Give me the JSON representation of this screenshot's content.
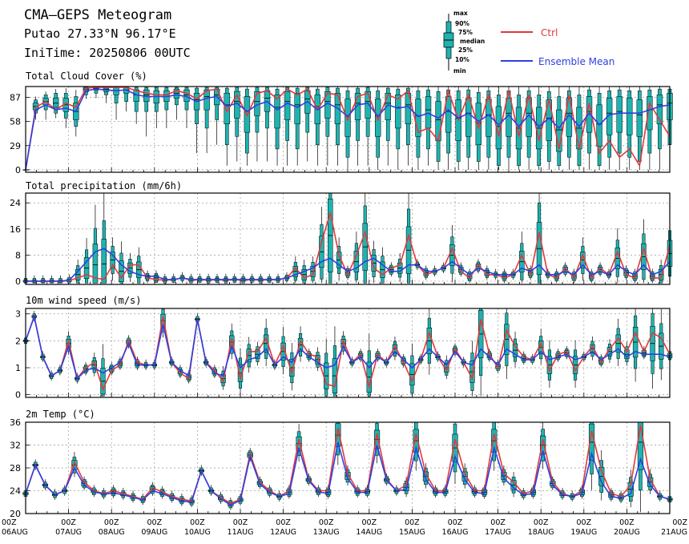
{
  "header": {
    "title": "CMA–GEPS Meteogram",
    "location": "Putao 27.33°N 96.17°E",
    "init_time": "IniTime: 20250806 00UTC"
  },
  "legend": {
    "box_labels": [
      "max",
      "90%",
      "75%",
      "median",
      "25%",
      "10%",
      "min"
    ],
    "ctrl_label": "Ctrl",
    "mean_label": "Ensemble Mean",
    "ctrl_color": "#e0393b",
    "mean_color": "#2e3fe0",
    "box_color": "#1fb3b0"
  },
  "x_axis": {
    "hour_labels": [
      "00Z",
      "00Z",
      "00Z",
      "00Z",
      "00Z",
      "00Z",
      "00Z",
      "00Z",
      "00Z",
      "00Z",
      "00Z",
      "00Z",
      "00Z",
      "00Z",
      "00Z",
      "00Z"
    ],
    "day_labels": [
      "06AUG",
      "07AUG",
      "08AUG",
      "09AUG",
      "10AUG",
      "11AUG",
      "12AUG",
      "13AUG",
      "14AUG",
      "15AUG",
      "16AUG",
      "17AUG",
      "18AUG",
      "19AUG",
      "20AUG",
      "21AUG"
    ]
  },
  "chart_data": [
    {
      "type": "box-line",
      "title": "Total Cloud Cover (%)",
      "ylim": [
        -3,
        100
      ],
      "yticks": [
        0,
        29,
        58,
        87
      ],
      "grid": true,
      "ctrl": [
        0,
        75,
        82,
        72,
        80,
        75,
        98,
        99,
        99,
        99,
        99,
        95,
        92,
        90,
        90,
        95,
        92,
        85,
        95,
        97,
        70,
        90,
        65,
        92,
        95,
        85,
        97,
        90,
        97,
        72,
        92,
        90,
        60,
        88,
        92,
        60,
        90,
        85,
        95,
        45,
        50,
        35,
        95,
        60,
        90,
        50,
        90,
        40,
        95,
        40,
        90,
        35,
        85,
        25,
        90,
        25,
        80,
        20,
        35,
        15,
        25,
        5,
        80,
        60,
        40
      ],
      "mean": [
        0,
        72,
        78,
        72,
        74,
        70,
        95,
        97,
        96,
        95,
        96,
        90,
        88,
        88,
        88,
        90,
        88,
        82,
        86,
        88,
        76,
        80,
        70,
        78,
        82,
        72,
        80,
        75,
        82,
        72,
        80,
        74,
        64,
        78,
        80,
        64,
        78,
        74,
        76,
        64,
        68,
        62,
        72,
        62,
        68,
        58,
        66,
        54,
        66,
        52,
        66,
        52,
        62,
        50,
        66,
        52,
        68,
        54,
        66,
        68,
        68,
        68,
        72,
        76,
        78
      ],
      "boxes": [
        [
          0,
          0,
          0,
          0,
          0,
          0,
          0
        ],
        [
          60,
          68,
          72,
          76,
          80,
          84,
          88
        ],
        [
          60,
          72,
          78,
          82,
          86,
          90,
          94
        ],
        [
          62,
          68,
          75,
          80,
          86,
          92,
          97
        ],
        [
          50,
          62,
          70,
          78,
          86,
          92,
          98
        ],
        [
          40,
          52,
          60,
          70,
          80,
          88,
          96
        ],
        [
          85,
          90,
          94,
          97,
          99,
          100,
          100
        ],
        [
          86,
          92,
          96,
          98,
          99,
          100,
          100
        ],
        [
          80,
          90,
          94,
          97,
          99,
          100,
          100
        ],
        [
          60,
          80,
          90,
          95,
          99,
          100,
          100
        ],
        [
          70,
          82,
          92,
          96,
          99,
          100,
          100
        ],
        [
          55,
          70,
          82,
          90,
          96,
          99,
          100
        ],
        [
          40,
          70,
          82,
          90,
          96,
          99,
          100
        ],
        [
          50,
          70,
          80,
          88,
          95,
          99,
          100
        ],
        [
          50,
          72,
          82,
          88,
          95,
          99,
          100
        ],
        [
          60,
          78,
          86,
          92,
          97,
          99,
          100
        ],
        [
          50,
          72,
          82,
          90,
          96,
          99,
          100
        ],
        [
          20,
          55,
          72,
          84,
          92,
          98,
          100
        ],
        [
          20,
          50,
          72,
          88,
          96,
          99,
          100
        ],
        [
          30,
          60,
          78,
          90,
          97,
          99,
          100
        ],
        [
          5,
          30,
          55,
          78,
          92,
          98,
          100
        ],
        [
          10,
          40,
          62,
          82,
          94,
          99,
          100
        ],
        [
          5,
          20,
          45,
          70,
          88,
          97,
          100
        ],
        [
          10,
          45,
          65,
          82,
          94,
          99,
          100
        ],
        [
          10,
          50,
          70,
          86,
          95,
          99,
          100
        ],
        [
          5,
          25,
          50,
          75,
          90,
          97,
          100
        ],
        [
          5,
          35,
          60,
          82,
          94,
          99,
          100
        ],
        [
          5,
          25,
          55,
          78,
          92,
          98,
          100
        ],
        [
          10,
          45,
          68,
          85,
          95,
          99,
          100
        ],
        [
          5,
          30,
          55,
          76,
          90,
          97,
          100
        ],
        [
          5,
          40,
          62,
          82,
          94,
          99,
          100
        ],
        [
          5,
          30,
          55,
          78,
          92,
          98,
          100
        ],
        [
          0,
          15,
          40,
          65,
          85,
          95,
          100
        ],
        [
          5,
          35,
          60,
          80,
          92,
          98,
          100
        ],
        [
          5,
          40,
          62,
          82,
          94,
          99,
          100
        ],
        [
          0,
          15,
          40,
          65,
          85,
          95,
          100
        ],
        [
          5,
          35,
          60,
          80,
          92,
          98,
          100
        ],
        [
          0,
          25,
          50,
          75,
          90,
          97,
          100
        ],
        [
          5,
          30,
          55,
          78,
          92,
          98,
          100
        ],
        [
          0,
          15,
          40,
          65,
          85,
          95,
          100
        ],
        [
          5,
          25,
          50,
          72,
          88,
          96,
          100
        ],
        [
          0,
          10,
          35,
          60,
          82,
          94,
          100
        ],
        [
          0,
          20,
          45,
          70,
          88,
          96,
          100
        ],
        [
          0,
          10,
          35,
          62,
          84,
          95,
          100
        ],
        [
          0,
          15,
          40,
          68,
          86,
          96,
          100
        ],
        [
          0,
          10,
          30,
          56,
          80,
          93,
          100
        ],
        [
          0,
          15,
          40,
          66,
          85,
          95,
          100
        ],
        [
          0,
          5,
          25,
          52,
          76,
          90,
          100
        ],
        [
          0,
          15,
          40,
          68,
          86,
          95,
          100
        ],
        [
          0,
          5,
          25,
          50,
          75,
          90,
          100
        ],
        [
          0,
          15,
          40,
          68,
          86,
          95,
          100
        ],
        [
          0,
          5,
          25,
          50,
          75,
          90,
          100
        ],
        [
          0,
          10,
          35,
          62,
          84,
          94,
          100
        ],
        [
          0,
          5,
          22,
          48,
          72,
          88,
          100
        ],
        [
          0,
          15,
          40,
          68,
          86,
          95,
          100
        ],
        [
          0,
          5,
          25,
          50,
          75,
          90,
          100
        ],
        [
          0,
          20,
          45,
          70,
          88,
          96,
          100
        ],
        [
          0,
          5,
          28,
          55,
          78,
          92,
          100
        ],
        [
          0,
          15,
          42,
          68,
          86,
          95,
          100
        ],
        [
          0,
          20,
          45,
          70,
          88,
          96,
          100
        ],
        [
          0,
          15,
          42,
          68,
          86,
          95,
          100
        ],
        [
          0,
          10,
          40,
          66,
          84,
          95,
          100
        ],
        [
          0,
          20,
          48,
          72,
          88,
          96,
          100
        ],
        [
          0,
          25,
          55,
          78,
          90,
          97,
          100
        ],
        [
          0,
          30,
          60,
          80,
          92,
          97,
          100
        ]
      ]
    },
    {
      "type": "box-line",
      "title": "Total precipitation (mm/6h)",
      "ylim": [
        -1,
        27
      ],
      "yticks": [
        0,
        8,
        16,
        24
      ],
      "grid": true,
      "ctrl": [
        0,
        0,
        0,
        0,
        0,
        0.2,
        1,
        2,
        1,
        0.5,
        5,
        1,
        5,
        5,
        1,
        0.5,
        0.3,
        0.5,
        1,
        0.3,
        0.5,
        0.3,
        0.5,
        0.3,
        0.5,
        0.3,
        0.5,
        0.3,
        0.5,
        0.5,
        1,
        4,
        1,
        2,
        12,
        21,
        8,
        2,
        8,
        15,
        4,
        2,
        4,
        5,
        14,
        5,
        2,
        3,
        4,
        10,
        3,
        1,
        5,
        2,
        2,
        1,
        2,
        8,
        2,
        15,
        2,
        1,
        4,
        1,
        8,
        1,
        4,
        2,
        9,
        2,
        1,
        10,
        1,
        1,
        11
      ],
      "mean": [
        0,
        0,
        0,
        0,
        0,
        0.3,
        3,
        6,
        9,
        10,
        8,
        5,
        3,
        2,
        1.5,
        1.5,
        0.5,
        0.5,
        1,
        0.5,
        0.5,
        0.5,
        0.5,
        0.5,
        0.5,
        0.5,
        0.5,
        0.5,
        0.5,
        0.5,
        1,
        2,
        3,
        4,
        6,
        7,
        5,
        3,
        4,
        6,
        7,
        5,
        3,
        3,
        5,
        5,
        3,
        3,
        4,
        6,
        4,
        2,
        4,
        3,
        2,
        2,
        2,
        4,
        3,
        5,
        2,
        2,
        3,
        2,
        5,
        2,
        3,
        2,
        5,
        3,
        2,
        5,
        2,
        3,
        6
      ]
    },
    {
      "type": "box-line",
      "title": "10m wind speed (m/s)",
      "ylim": [
        -0.1,
        3.2
      ],
      "yticks": [
        0,
        1,
        2,
        3
      ],
      "grid": true,
      "ctrl": [
        2,
        2.9,
        1.4,
        0.7,
        0.9,
        2,
        0.6,
        1.0,
        1.2,
        0.2,
        0.9,
        1.1,
        2.0,
        1.2,
        1.1,
        1.1,
        2.9,
        1.2,
        0.8,
        0.6,
        2.8,
        1.2,
        0.9,
        0.5,
        2.1,
        0.6,
        1.6,
        1.6,
        2.1,
        1.1,
        1.8,
        0.8,
        2.0,
        1.5,
        1.4,
        0.4,
        0.3,
        2.0,
        1.2,
        1.5,
        0.3,
        1.5,
        1.2,
        1.8,
        1.2,
        0.5,
        1.3,
        2.3,
        1.4,
        0.9,
        1.7,
        1.2,
        0.6,
        2.8,
        1.5,
        1.0,
        2.4,
        1.8,
        1.4,
        1.3,
        1.9,
        0.9,
        1.5,
        1.6,
        0.9,
        1.4,
        1.8,
        1.2,
        1.7,
        2.1,
        1.6,
        2.3,
        1.6,
        2.3,
        2.1,
        1.5
      ],
      "mean": [
        2,
        2.9,
        1.4,
        0.7,
        0.9,
        1.8,
        0.6,
        0.9,
        1.0,
        0.8,
        1.0,
        1.2,
        1.9,
        1.1,
        1.1,
        1.1,
        2.6,
        1.2,
        0.9,
        0.7,
        2.8,
        1.2,
        0.8,
        0.7,
        1.8,
        1.0,
        1.3,
        1.4,
        1.7,
        1.1,
        1.4,
        1.2,
        1.7,
        1.4,
        1.2,
        1.0,
        1.1,
        1.8,
        1.2,
        1.4,
        1.0,
        1.4,
        1.2,
        1.6,
        1.3,
        1.0,
        1.3,
        1.7,
        1.4,
        1.1,
        1.6,
        1.2,
        1.1,
        1.7,
        1.4,
        1.1,
        1.7,
        1.5,
        1.3,
        1.3,
        1.6,
        1.3,
        1.4,
        1.5,
        1.3,
        1.4,
        1.6,
        1.3,
        1.5,
        1.7,
        1.4,
        1.6,
        1.5,
        1.5,
        1.5,
        1.4
      ]
    },
    {
      "type": "box-line",
      "title": "2m Temp (°C)",
      "ylim": [
        20,
        36
      ],
      "yticks": [
        20,
        24,
        28,
        32,
        36
      ],
      "grid": true,
      "ctrl": [
        23.5,
        28.5,
        25,
        23.3,
        24,
        29,
        25.5,
        24,
        23.5,
        24,
        23.5,
        23,
        22.5,
        24.5,
        23.8,
        23,
        22.5,
        22.2,
        27.5,
        24,
        22.8,
        21.8,
        22.5,
        30.5,
        25.5,
        24,
        23,
        24,
        33,
        26,
        24,
        24,
        35,
        27,
        24,
        24,
        34,
        26,
        24,
        25,
        34,
        27,
        24,
        24,
        33,
        27,
        24,
        24,
        34,
        27,
        25.5,
        23.5,
        24,
        33,
        25.5,
        23.5,
        23,
        24,
        34.5,
        27.5,
        23.5,
        23,
        25,
        35.5,
        26,
        23,
        22.5
      ],
      "mean": [
        23.5,
        28.5,
        25,
        23.3,
        24,
        28,
        25,
        23.8,
        23.4,
        23.6,
        23.3,
        22.8,
        22.4,
        24,
        23.5,
        22.8,
        22.2,
        22,
        27.5,
        24,
        22.6,
        21.5,
        22.3,
        30,
        25.2,
        23.7,
        23,
        23.5,
        31.5,
        25.8,
        23.8,
        23.5,
        32.5,
        26.2,
        23.7,
        23.7,
        32,
        25.8,
        24,
        24.2,
        31.5,
        26,
        23.7,
        23.7,
        30,
        26,
        23.7,
        23.5,
        31.5,
        26.2,
        24.5,
        23.3,
        23.5,
        31,
        25,
        23.3,
        23,
        23.5,
        30.5,
        25.5,
        23,
        22.7,
        23.5,
        29.5,
        25,
        23,
        22.5
      ]
    }
  ]
}
